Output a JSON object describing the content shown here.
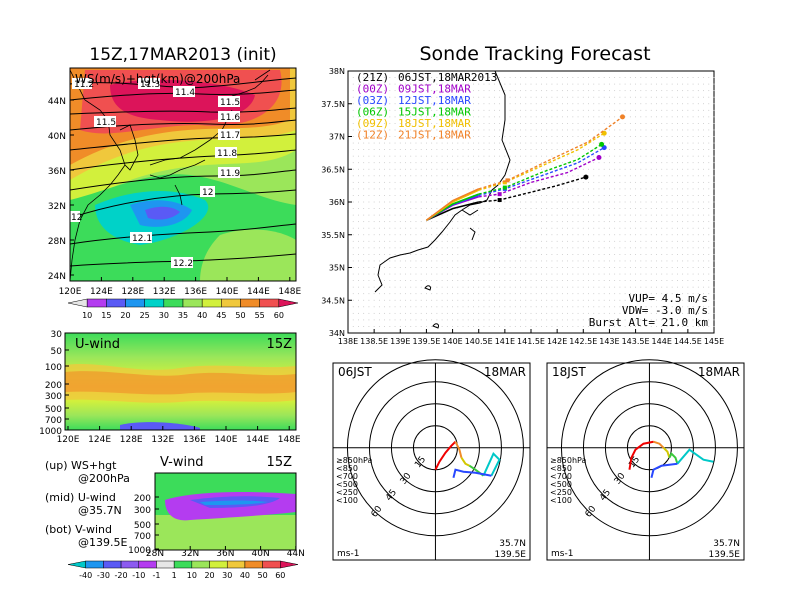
{
  "colors": {
    "ws_bands": [
      "#e6e6e6",
      "#b43cf0",
      "#5a5af5",
      "#1e96f0",
      "#00d2c8",
      "#3cdc5a",
      "#9be65a",
      "#d2f03c",
      "#f0c83c",
      "#f08c28",
      "#f05050",
      "#dc145a"
    ],
    "sonde_series": [
      "#000000",
      "#a000c8",
      "#2848ff",
      "#00c800",
      "#f0c000",
      "#f08228"
    ]
  },
  "left_top": {
    "title": "15Z,17MAR2013 (init)",
    "label": "WS(m/s)+hgt(km)@200hPa",
    "y_ticks": [
      "44N",
      "40N",
      "36N",
      "32N",
      "28N",
      "24N"
    ],
    "x_ticks": [
      "120E",
      "124E",
      "128E",
      "132E",
      "136E",
      "140E",
      "144E",
      "148E"
    ],
    "contour_labels": [
      "11.2",
      "11.3",
      "11.4",
      "11.5",
      "11.5",
      "11.6",
      "11.7",
      "11.8",
      "11.9",
      "12",
      "12",
      "12.1",
      "12.2"
    ],
    "colorbar_ticks": [
      "10",
      "15",
      "20",
      "25",
      "30",
      "35",
      "40",
      "45",
      "50",
      "55",
      "60"
    ]
  },
  "left_mid": {
    "label": "U-wind",
    "time": "15Z",
    "y_ticks": [
      "30",
      "50",
      "100",
      "200",
      "300",
      "500",
      "700",
      "1000"
    ],
    "x_ticks": [
      "120E",
      "124E",
      "128E",
      "132E",
      "136E",
      "140E",
      "144E",
      "148E"
    ]
  },
  "left_bot": {
    "label": "V-wind",
    "time": "15Z",
    "y_ticks": [
      "200",
      "300",
      "500",
      "700",
      "1000"
    ],
    "x_ticks": [
      "28N",
      "32N",
      "36N",
      "40N",
      "44N"
    ],
    "colorbar_ticks": [
      "-40",
      "-30",
      "-20",
      "-10",
      "-1",
      "1",
      "10",
      "20",
      "30",
      "40",
      "50",
      "60"
    ]
  },
  "legend_text": {
    "up1": "(up) WS+hgt",
    "up2": "@200hPa",
    "mid1": "(mid) U-wind",
    "mid2": "@35.7N",
    "bot1": "(bot) V-wind",
    "bot2": "@139.5E"
  },
  "track": {
    "title": "Sonde Tracking Forecast",
    "series": [
      {
        "code": "(21Z)",
        "label": "06JST,18MAR2013"
      },
      {
        "code": "(00Z)",
        "label": "09JST,18MAR"
      },
      {
        "code": "(03Z)",
        "label": "12JST,18MAR"
      },
      {
        "code": "(06Z)",
        "label": "15JST,18MAR"
      },
      {
        "code": "(09Z)",
        "label": "18JST,18MAR"
      },
      {
        "code": "(12Z)",
        "label": "21JST,18MAR"
      }
    ],
    "y_ticks": [
      "38N",
      "37.5N",
      "37N",
      "36.5N",
      "36N",
      "35.5N",
      "35N",
      "34.5N",
      "34N"
    ],
    "x_ticks": [
      "138E",
      "138.5E",
      "139E",
      "139.5E",
      "140E",
      "140.5E",
      "141E",
      "141.5E",
      "142E",
      "142.5E",
      "143E",
      "143.5E",
      "144E",
      "144.5E",
      "145E"
    ],
    "vup": "VUP= 4.5 m/s",
    "vdw": "VDW= -3.0 m/s",
    "burst": "Burst Alt= 21.0 km"
  },
  "hodo_left": {
    "time": "06JST",
    "date": "18MAR",
    "ring_labels": [
      "15",
      "30",
      "45",
      "60"
    ],
    "levels": [
      "≥850hPa",
      "<850",
      "<700",
      "<500",
      "<250",
      "<100"
    ],
    "units": "ms-1",
    "lat": "35.7N",
    "lon": "139.5E"
  },
  "hodo_right": {
    "time": "18JST",
    "date": "18MAR",
    "ring_labels": [
      "15",
      "30",
      "45",
      "60"
    ],
    "levels": [
      "≥850hPa",
      "<850",
      "<700",
      "<500",
      "<250",
      "<100"
    ],
    "units": "ms-1",
    "lat": "35.7N",
    "lon": "139.5E"
  },
  "chart_data": [
    {
      "type": "heatmap",
      "title": "15Z,17MAR2013 (init)",
      "label": "WS(m/s)+hgt(km)@200hPa",
      "x_range": [
        120,
        149
      ],
      "y_range": [
        22,
        47
      ],
      "colorbar": [
        10,
        15,
        20,
        25,
        30,
        35,
        40,
        45,
        50,
        55,
        60
      ],
      "contour_levels_km": [
        11.2,
        11.3,
        11.4,
        11.5,
        11.6,
        11.7,
        11.8,
        11.9,
        12,
        12.1,
        12.2
      ]
    },
    {
      "type": "heatmap",
      "label": "U-wind",
      "x_range": [
        120,
        149
      ],
      "y_ticks_hPa": [
        30,
        50,
        100,
        200,
        300,
        500,
        700,
        1000
      ]
    },
    {
      "type": "heatmap",
      "label": "V-wind",
      "x_range": [
        28,
        44
      ],
      "y_ticks_hPa": [
        200,
        300,
        500,
        700,
        1000
      ],
      "colorbar": [
        -40,
        -30,
        -20,
        -10,
        -1,
        1,
        10,
        20,
        30,
        40,
        50,
        60
      ]
    },
    {
      "type": "line",
      "title": "Sonde Tracking Forecast",
      "xlim": [
        138,
        145
      ],
      "ylim": [
        34,
        38
      ],
      "series": [
        {
          "name": "06JST,18MAR2013",
          "x": [
            139.5,
            140.0,
            140.5,
            140.9,
            141.5,
            142.0,
            142.55
          ],
          "y": [
            35.72,
            35.9,
            36.0,
            36.03,
            36.15,
            36.25,
            36.38
          ]
        },
        {
          "name": "09JST,18MAR",
          "x": [
            139.5,
            140.0,
            140.5,
            140.9,
            141.5,
            142.2,
            142.8
          ],
          "y": [
            35.72,
            35.95,
            36.08,
            36.12,
            36.3,
            36.45,
            36.68
          ]
        },
        {
          "name": "12JST,18MAR",
          "x": [
            139.5,
            140.0,
            140.5,
            141.0,
            141.7,
            142.4,
            142.9
          ],
          "y": [
            35.72,
            35.96,
            36.1,
            36.2,
            36.4,
            36.6,
            36.83
          ]
        },
        {
          "name": "15JST,18MAR",
          "x": [
            139.5,
            140.0,
            140.5,
            141.0,
            141.7,
            142.4,
            142.85
          ],
          "y": [
            35.72,
            35.97,
            36.12,
            36.22,
            36.45,
            36.65,
            36.88
          ]
        },
        {
          "name": "18JST,18MAR",
          "x": [
            139.5,
            140.0,
            140.5,
            141.0,
            141.7,
            142.4,
            142.9
          ],
          "y": [
            35.72,
            36.0,
            36.18,
            36.3,
            36.55,
            36.8,
            37.05
          ]
        },
        {
          "name": "21JST,18MAR",
          "x": [
            139.5,
            140.0,
            140.5,
            141.05,
            141.8,
            142.6,
            143.25
          ],
          "y": [
            35.72,
            36.02,
            36.2,
            36.33,
            36.62,
            36.92,
            37.3
          ]
        }
      ]
    }
  ]
}
